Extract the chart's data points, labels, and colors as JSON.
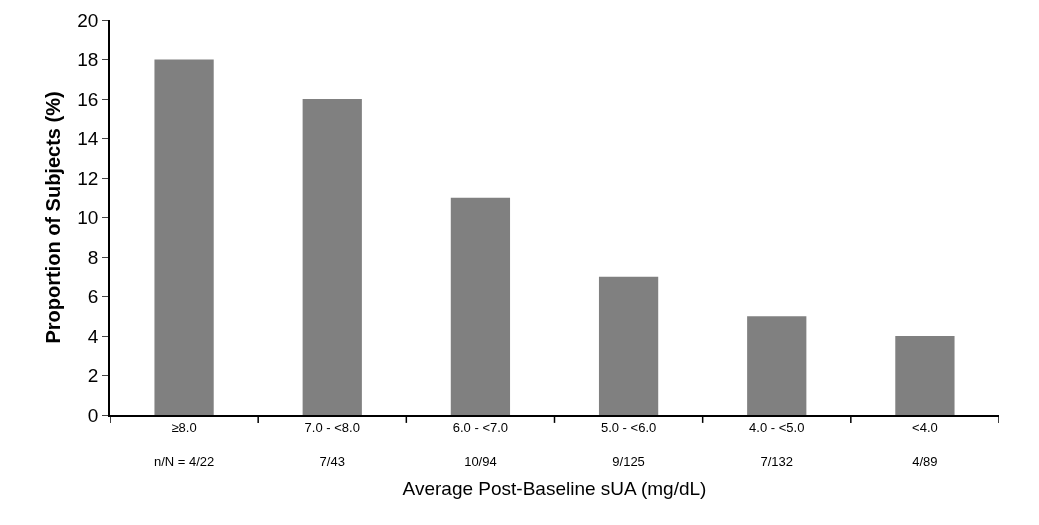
{
  "chart_data": {
    "type": "bar",
    "xlabel": "Average Post-Baseline sUA (mg/dL)",
    "ylabel": "Proportion of Subjects (%)",
    "categories": [
      "≥8.0\nn/N = 4/22",
      "7.0 - <8.0\n7/43",
      "6.0 - <7.0\n10/94",
      "5.0 - <6.0\n9/125",
      "4.0 - <5.0\n7/132",
      "<4.0\n4/89"
    ],
    "values": [
      18,
      16,
      11,
      7,
      5,
      4
    ],
    "color": "#808080",
    "ylim": [
      0,
      20
    ],
    "yticks": [
      0,
      2,
      4,
      6,
      8,
      10,
      12,
      14,
      16,
      18,
      20
    ],
    "grid": false
  }
}
